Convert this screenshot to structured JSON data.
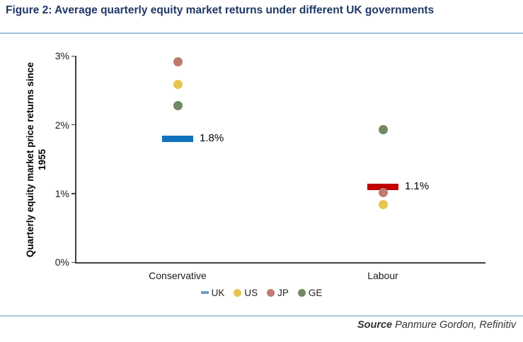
{
  "figure_title": "Figure 2: Average quarterly equity market returns under different UK governments",
  "source": {
    "label": "Source",
    "text": "Panmure Gordon, Refinitiv"
  },
  "colors": {
    "title_navy": "#1F3864",
    "divider_blue": "#9CC2E5",
    "uk_bar_conservative": "#1173BD",
    "uk_bar_labour": "#C00000",
    "us_dot": "#E8C552",
    "jp_dot": "#BE7B6E",
    "ge_dot": "#6F8A63",
    "axis": "#404040"
  },
  "chart_data": {
    "type": "scatter",
    "title": "Average quarterly equity market returns under different UK governments",
    "ylabel_line1": "Quarterly equity market price returns since",
    "ylabel_line2": "1955",
    "xlabel": "",
    "categories": [
      "Conservative",
      "Labour"
    ],
    "ylim": [
      0,
      3
    ],
    "grid": false,
    "legend_position": "bottom",
    "yticks": [
      {
        "label": "3%",
        "value": 3
      },
      {
        "label": "2%",
        "value": 2
      },
      {
        "label": "1%",
        "value": 1
      },
      {
        "label": "0%",
        "value": 0
      }
    ],
    "series": [
      {
        "name": "UK",
        "marker": "bar",
        "values": [
          1.8,
          1.1
        ],
        "data_labels": [
          "1.8%",
          "1.1%"
        ],
        "colors": [
          "#1173BD",
          "#C00000"
        ],
        "legend_color": "#6C9DC9"
      },
      {
        "name": "US",
        "marker": "dot",
        "values": [
          2.59,
          0.84
        ],
        "data_labels": [
          null,
          null
        ],
        "colors": [
          "#E8C552",
          "#E8C552"
        ],
        "legend_color": "#E8C552"
      },
      {
        "name": "JP",
        "marker": "dot",
        "values": [
          2.92,
          1.02
        ],
        "data_labels": [
          null,
          null
        ],
        "colors": [
          "#BE7B6E",
          "#BE7B6E"
        ],
        "legend_color": "#BE7B6E"
      },
      {
        "name": "GE",
        "marker": "dot",
        "values": [
          2.28,
          1.93
        ],
        "data_labels": [
          null,
          null
        ],
        "colors": [
          "#6F8A63",
          "#6F8A63"
        ],
        "legend_color": "#6F8A63"
      }
    ]
  }
}
